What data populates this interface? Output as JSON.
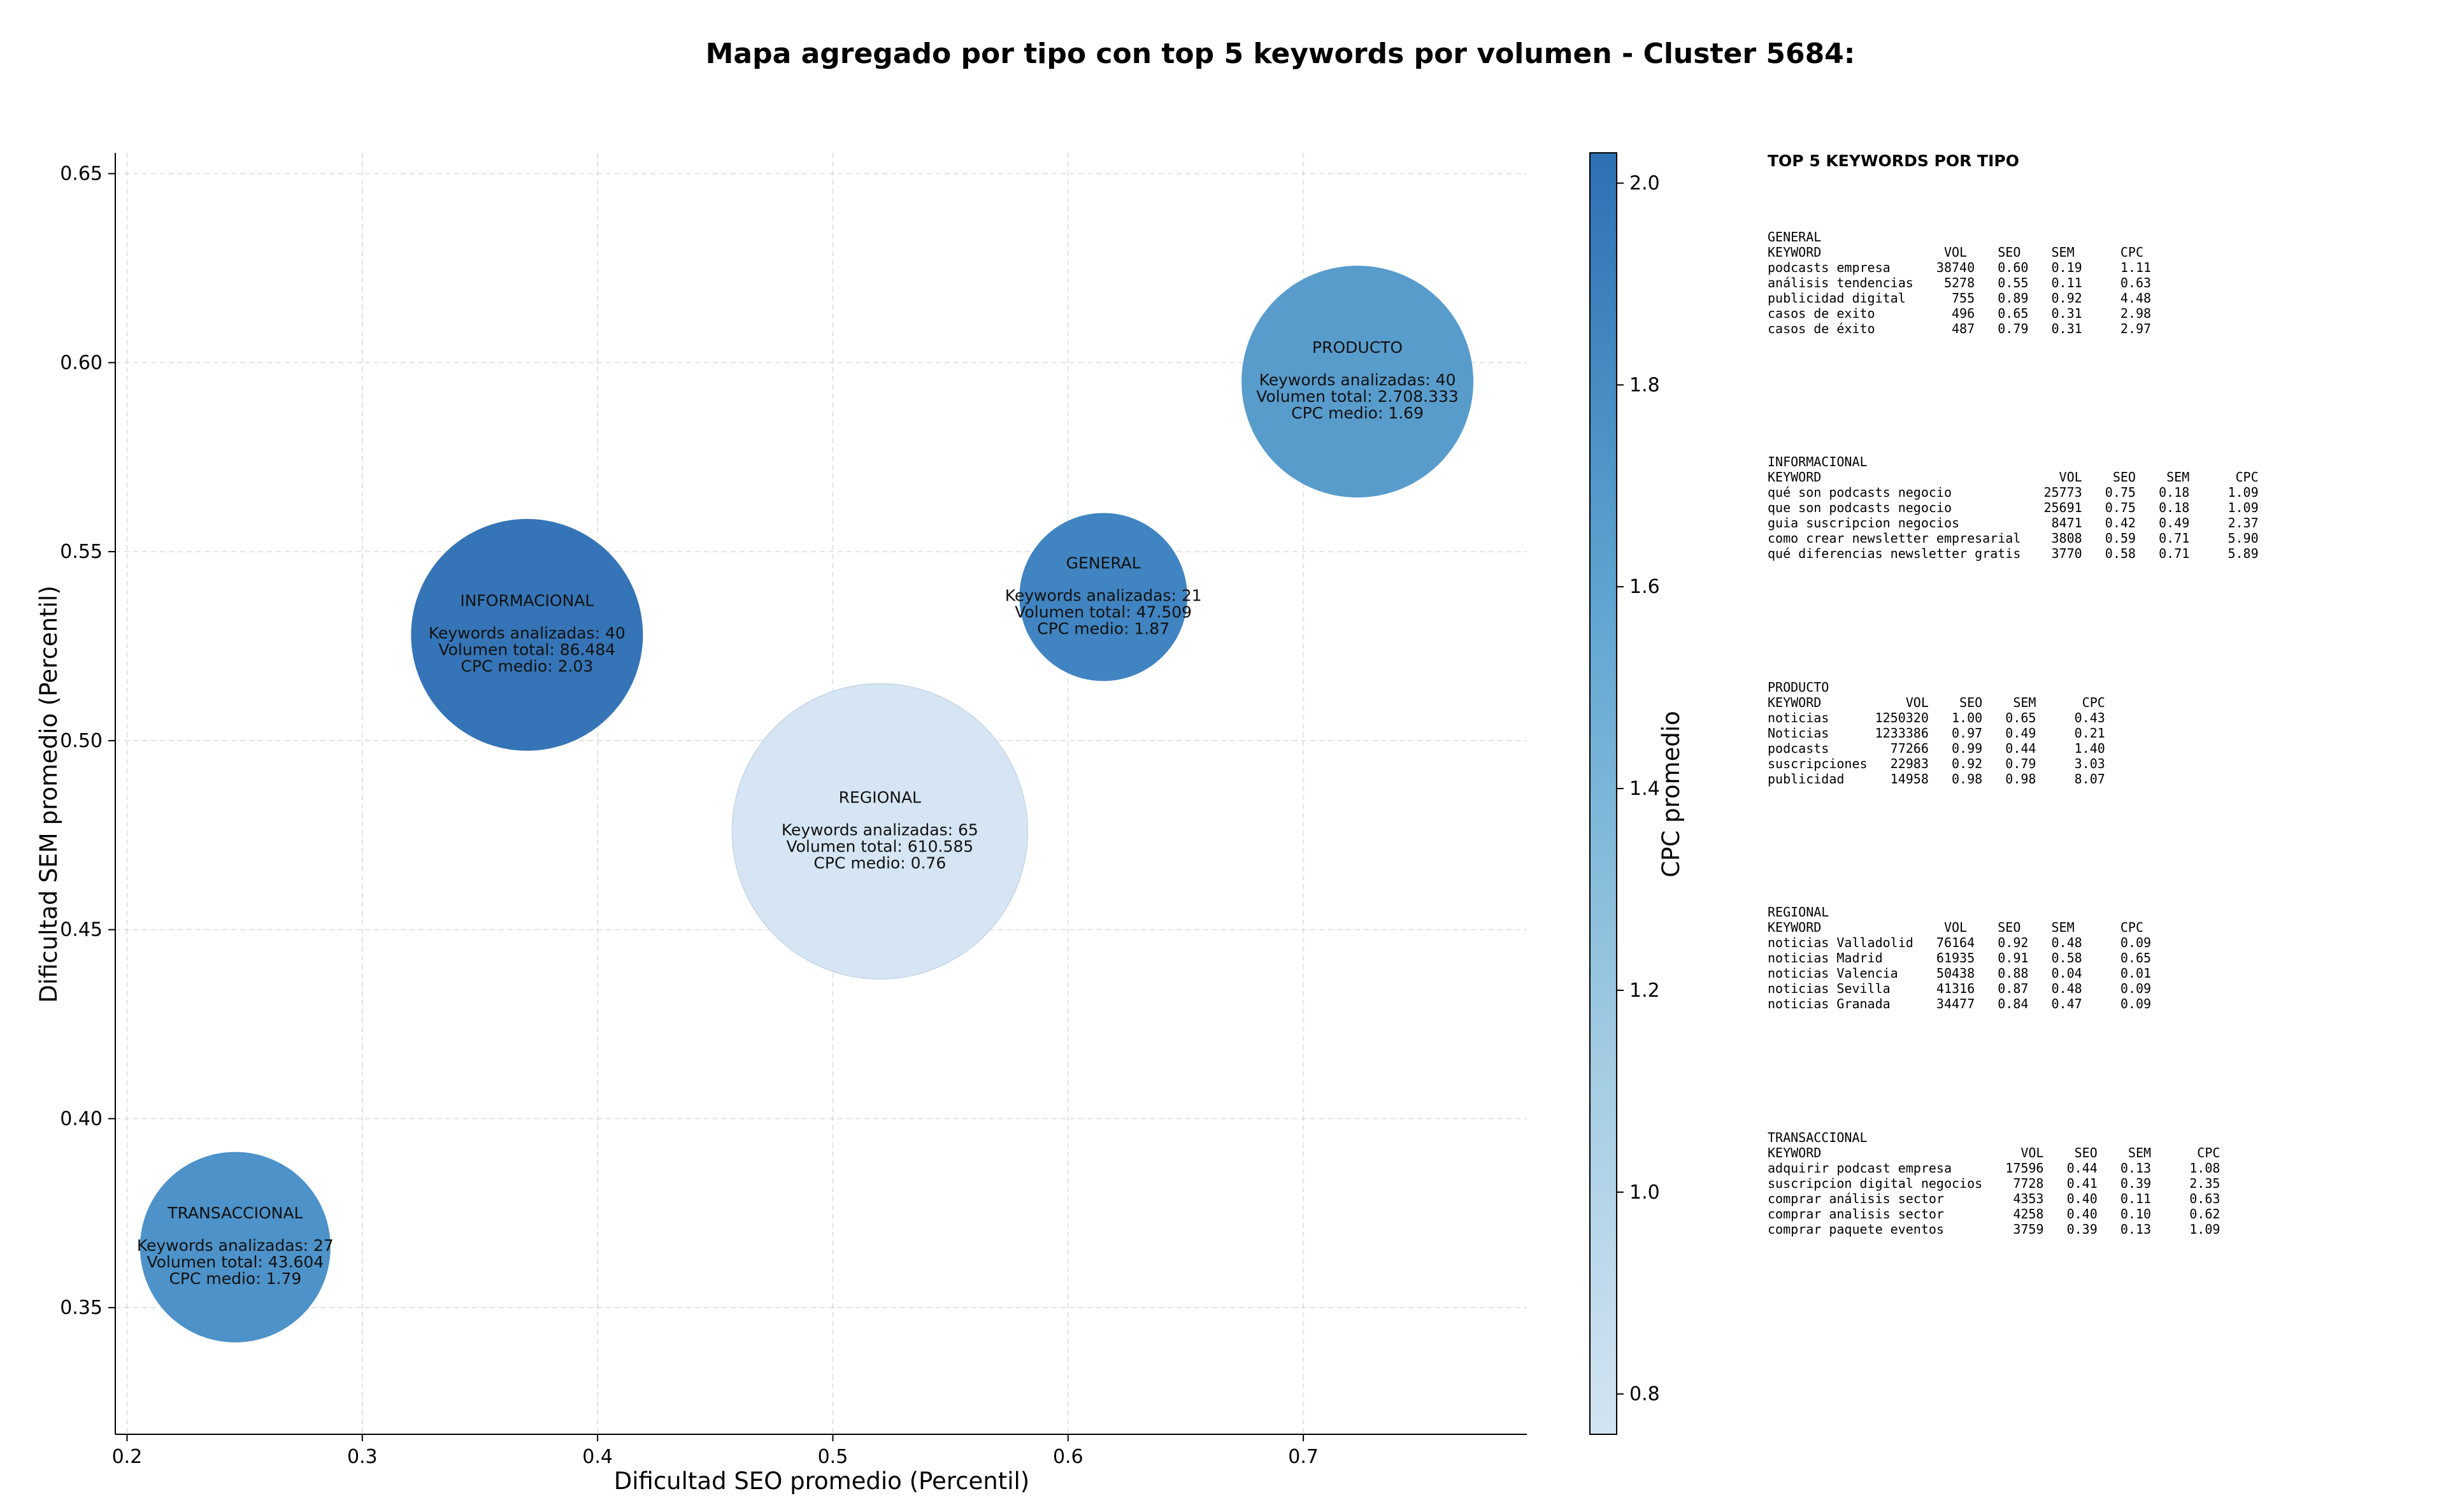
{
  "chart_data": {
    "type": "scatter",
    "subtype": "bubble",
    "title": "Mapa agregado por tipo con top 5 keywords por volumen - Cluster 5684:",
    "xlabel": "Dificultad SEO promedio (Percentil)",
    "ylabel": "Dificultad SEM promedio (Percentil)",
    "xlim": [
      0.195,
      0.795
    ],
    "ylim": [
      0.3165,
      0.6555
    ],
    "xticks": [
      "0.2",
      "0.3",
      "0.4",
      "0.5",
      "0.6",
      "0.7"
    ],
    "yticks": [
      "0.35",
      "0.40",
      "0.45",
      "0.50",
      "0.55",
      "0.60",
      "0.65"
    ],
    "grid": true,
    "colorbar": {
      "label": "CPC promedio",
      "range": [
        0.76,
        2.03
      ],
      "ticks": [
        "0.8",
        "1.0",
        "1.2",
        "1.4",
        "1.6",
        "1.8",
        "2.0"
      ],
      "colors": [
        "#d3e4f3",
        "#a1cbe2",
        "#5fa5d1",
        "#2d71b4"
      ]
    },
    "points": [
      {
        "name": "INFORMACIONAL",
        "x": 0.37,
        "y": 0.528,
        "keywords": 40,
        "volume": 86484,
        "cpc": 2.03,
        "line1": "Keywords analizadas: 40",
        "line2": "Volumen total: 86.484",
        "line3": "CPC medio: 2.03",
        "color": "#2e6fb4"
      },
      {
        "name": "GENERAL",
        "x": 0.615,
        "y": 0.538,
        "keywords": 21,
        "volume": 47509,
        "cpc": 1.87,
        "line1": "Keywords analizadas: 21",
        "line2": "Volumen total: 47.509",
        "line3": "CPC medio: 1.87",
        "color": "#3a80bf"
      },
      {
        "name": "PRODUCTO",
        "x": 0.723,
        "y": 0.595,
        "keywords": 40,
        "volume": 2708333,
        "cpc": 1.69,
        "line1": "Keywords analizadas: 40",
        "line2": "Volumen total: 2.708.333",
        "line3": "CPC medio: 1.69",
        "color": "#5399ca"
      },
      {
        "name": "REGIONAL",
        "x": 0.52,
        "y": 0.476,
        "keywords": 65,
        "volume": 610585,
        "cpc": 0.76,
        "line1": "Keywords analizadas: 65",
        "line2": "Volumen total: 610.585",
        "line3": "CPC medio: 0.76",
        "color": "#d4e4f3"
      },
      {
        "name": "TRANSACCIONAL",
        "x": 0.246,
        "y": 0.366,
        "keywords": 27,
        "volume": 43604,
        "cpc": 1.79,
        "line1": "Keywords analizadas: 27",
        "line2": "Volumen total: 43.604",
        "line3": "CPC medio: 1.79",
        "color": "#478ec6"
      }
    ]
  },
  "side_panel": {
    "heading": "TOP 5 KEYWORDS POR TIPO",
    "blocks": [
      {
        "text": "GENERAL\nKEYWORD                VOL    SEO    SEM      CPC\npodcasts empresa      38740   0.60   0.19     1.11\nanálisis tendencias    5278   0.55   0.11     0.63\npublicidad digital      755   0.89   0.92     4.48\ncasos de exito          496   0.65   0.31     2.98\ncasos de éxito          487   0.79   0.31     2.97"
      },
      {
        "text": "INFORMACIONAL\nKEYWORD                               VOL    SEO    SEM      CPC\nqué son podcasts negocio            25773   0.75   0.18     1.09\nque son podcasts negocio            25691   0.75   0.18     1.09\nguia suscripcion negocios            8471   0.42   0.49     2.37\ncomo crear newsletter empresarial    3808   0.59   0.71     5.90\nqué diferencias newsletter gratis    3770   0.58   0.71     5.89"
      },
      {
        "text": "PRODUCTO\nKEYWORD           VOL    SEO    SEM      CPC\nnoticias      1250320   1.00   0.65     0.43\nNoticias      1233386   0.97   0.49     0.21\npodcasts        77266   0.99   0.44     1.40\nsuscripciones   22983   0.92   0.79     3.03\npublicidad      14958   0.98   0.98     8.07"
      },
      {
        "text": "REGIONAL\nKEYWORD                VOL    SEO    SEM      CPC\nnoticias Valladolid   76164   0.92   0.48     0.09\nnoticias Madrid       61935   0.91   0.58     0.65\nnoticias Valencia     50438   0.88   0.04     0.01\nnoticias Sevilla      41316   0.87   0.48     0.09\nnoticias Granada      34477   0.84   0.47     0.09"
      },
      {
        "text": "TRANSACCIONAL\nKEYWORD                          VOL    SEO    SEM      CPC\nadquirir podcast empresa       17596   0.44   0.13     1.08\nsuscripcion digital negocios    7728   0.41   0.39     2.35\ncomprar análisis sector         4353   0.40   0.11     0.63\ncomprar analisis sector         4258   0.40   0.10     0.62\ncomprar paquete eventos         3759   0.39   0.13     1.09"
      }
    ]
  }
}
